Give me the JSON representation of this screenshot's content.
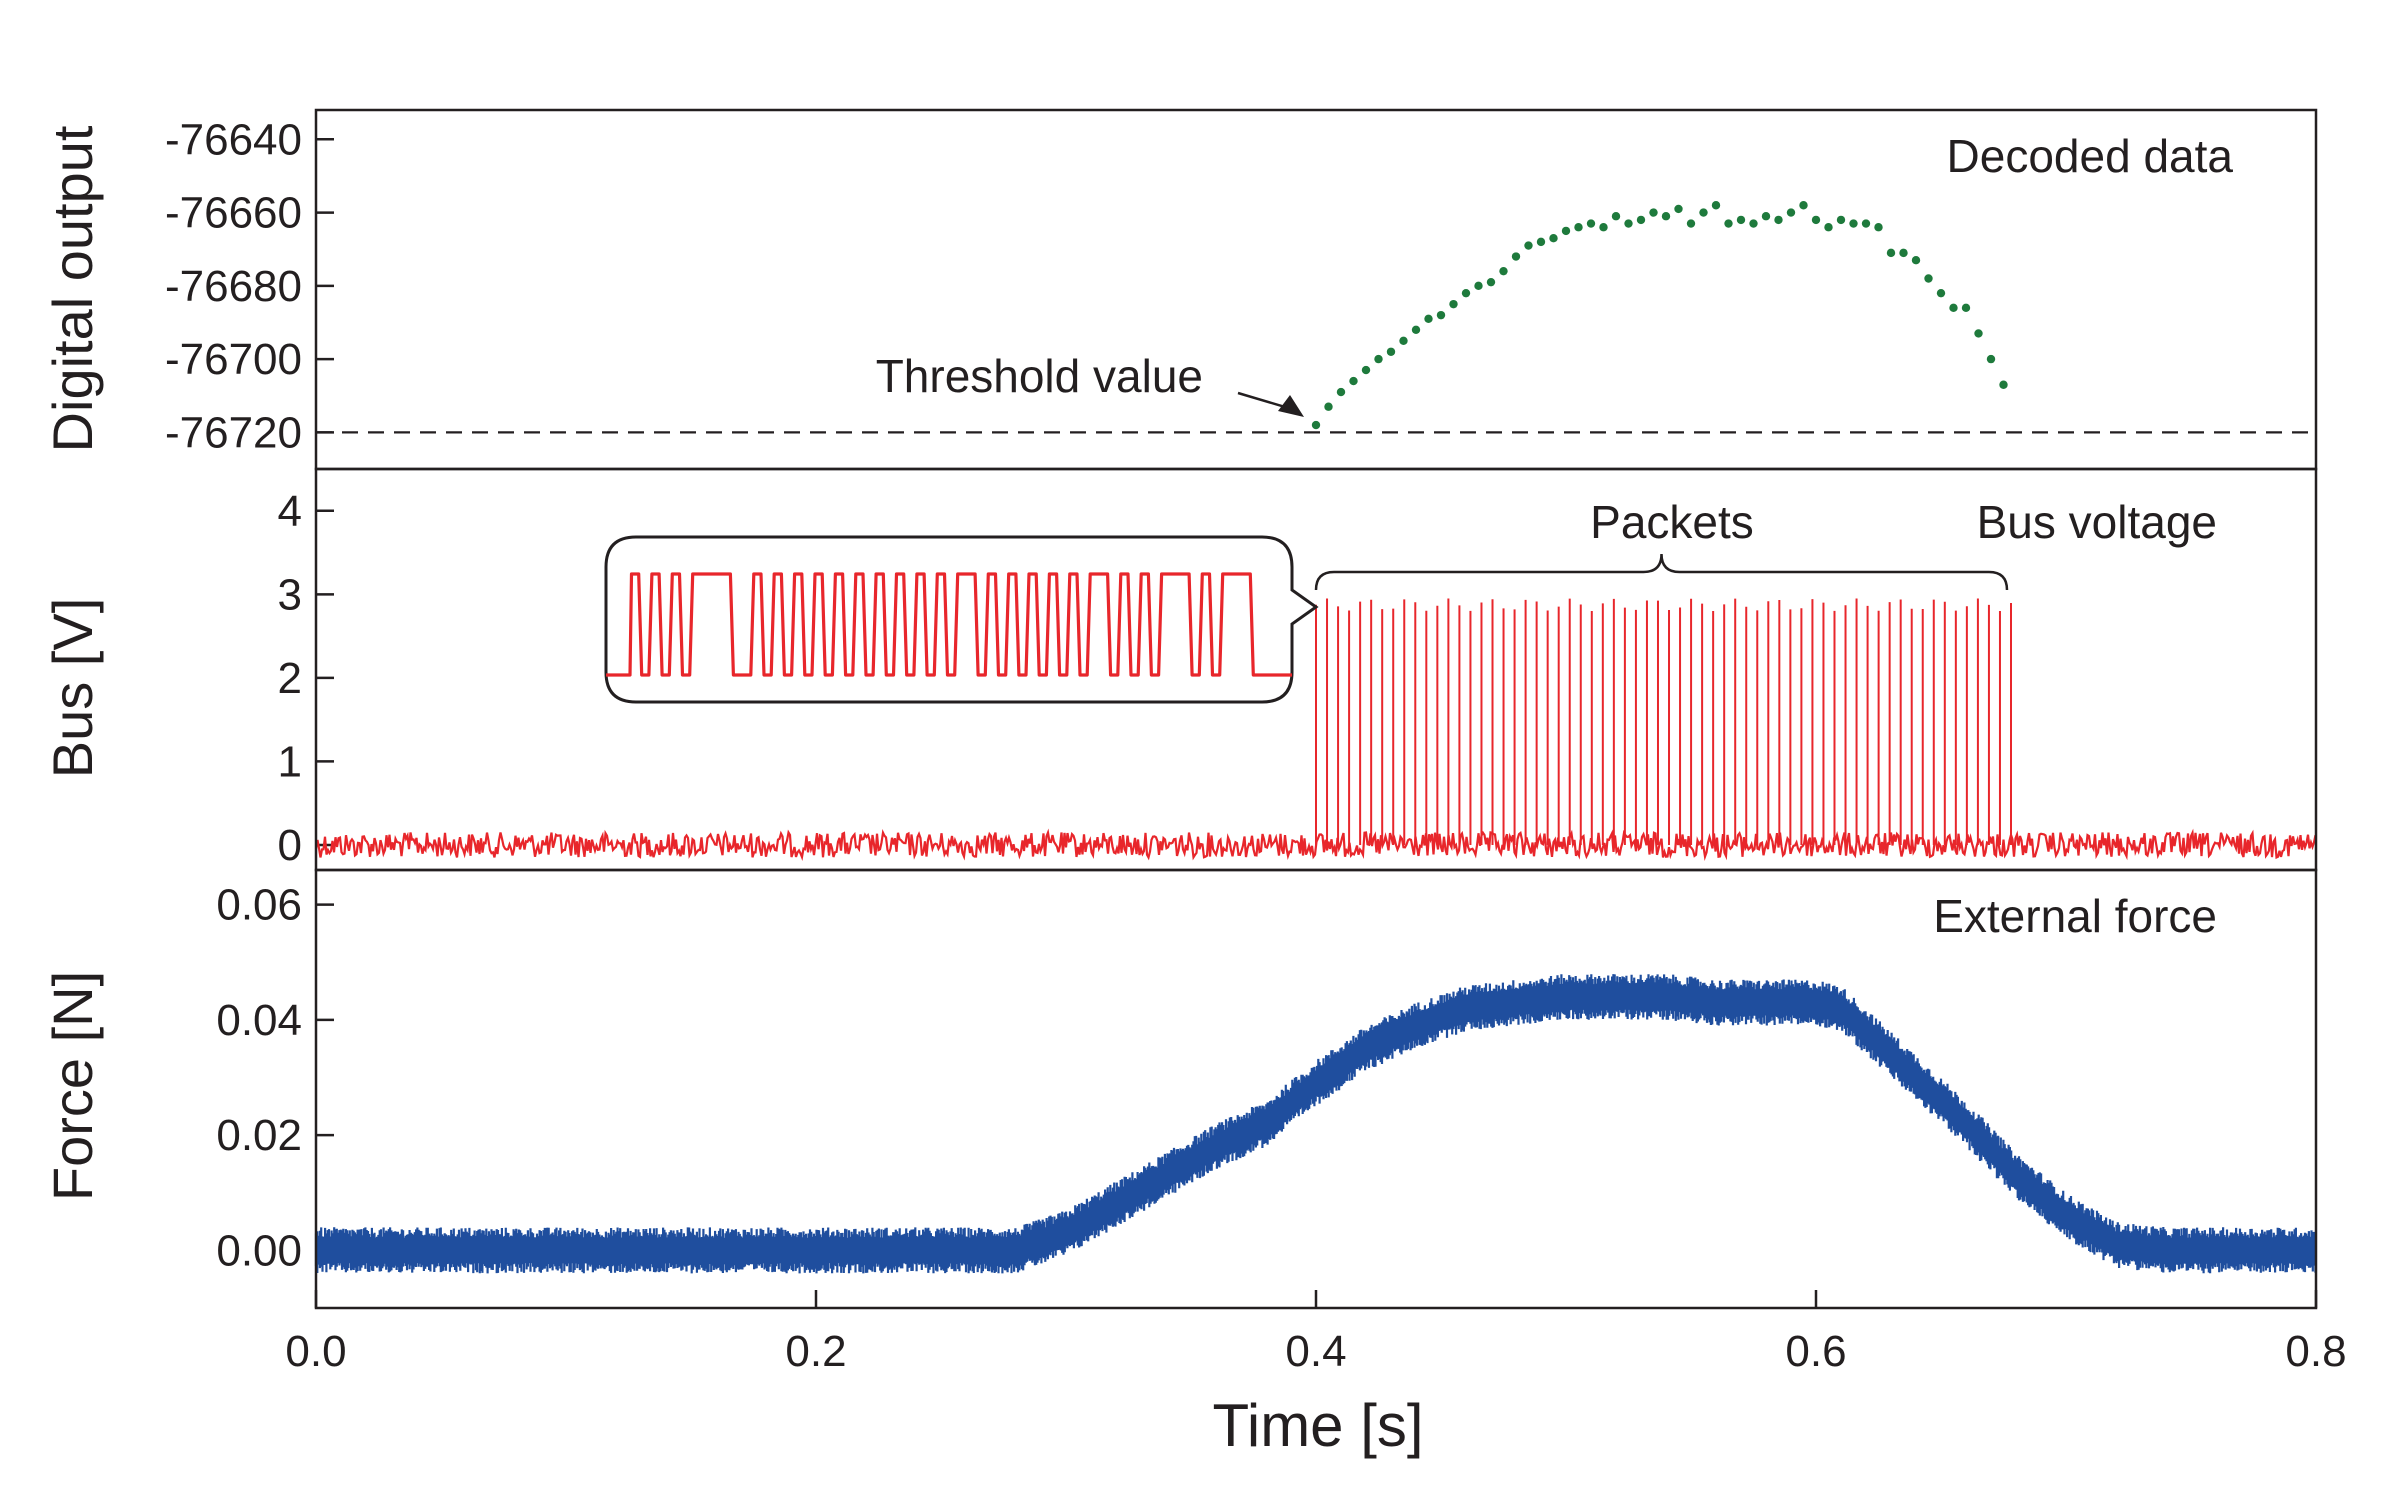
{
  "chart_data": [
    {
      "type": "scatter",
      "panel": "top",
      "ylabel": "Digital output",
      "annotations": [
        "Decoded data",
        "Threshold value"
      ],
      "ylim": [
        -76730,
        -76632
      ],
      "yticks": [
        -76640,
        -76660,
        -76680,
        -76700,
        -76720
      ],
      "ytick_labels": [
        "-76640",
        "-76660",
        "-76680",
        "-76700",
        "-76720"
      ],
      "threshold": -76720,
      "color": "#1e7a3c",
      "series": [
        {
          "name": "Decoded data",
          "x": [
            0.4,
            0.405,
            0.41,
            0.415,
            0.42,
            0.425,
            0.43,
            0.435,
            0.44,
            0.445,
            0.45,
            0.455,
            0.46,
            0.465,
            0.47,
            0.475,
            0.48,
            0.485,
            0.49,
            0.495,
            0.5,
            0.505,
            0.51,
            0.515,
            0.52,
            0.525,
            0.53,
            0.535,
            0.54,
            0.545,
            0.55,
            0.555,
            0.56,
            0.565,
            0.57,
            0.575,
            0.58,
            0.585,
            0.59,
            0.595,
            0.6,
            0.605,
            0.61,
            0.615,
            0.62,
            0.625,
            0.63,
            0.635,
            0.64,
            0.645,
            0.65,
            0.655,
            0.66,
            0.665,
            0.67,
            0.675
          ],
          "y": [
            -76718,
            -76713,
            -76709,
            -76706,
            -76703,
            -76700,
            -76698,
            -76695,
            -76692,
            -76689,
            -76688,
            -76685,
            -76682,
            -76680,
            -76679,
            -76676,
            -76672,
            -76669,
            -76668,
            -76667,
            -76665,
            -76664,
            -76663,
            -76664,
            -76661,
            -76663,
            -76662,
            -76660,
            -76661,
            -76659,
            -76663,
            -76660,
            -76658,
            -76663,
            -76662,
            -76663,
            -76661,
            -76662,
            -76660,
            -76658,
            -76662,
            -76664,
            -76662,
            -76663,
            -76663,
            -76664,
            -76671,
            -76671,
            -76673,
            -76678,
            -76682,
            -76686,
            -76686,
            -76693,
            -76700,
            -76707
          ]
        }
      ]
    },
    {
      "type": "line",
      "panel": "middle",
      "ylabel": "Bus [V]",
      "annotations": [
        "Bus voltage",
        "Packets"
      ],
      "ylim": [
        -0.3,
        4.5
      ],
      "yticks": [
        0,
        1,
        2,
        3,
        4
      ],
      "ytick_labels": [
        "0",
        "1",
        "2",
        "3",
        "4"
      ],
      "color": "#e8262b",
      "baseline_v": 0,
      "noise_v": 0.15,
      "packet_span_s": [
        0.4,
        0.678
      ],
      "packet_count": 64,
      "packet_high_v": [
        2.8,
        2.95
      ],
      "inset": {
        "low_v": 2.0,
        "high_v": 3.15,
        "bits": 40
      }
    },
    {
      "type": "line",
      "panel": "bottom",
      "ylabel": "Force [N]",
      "xlabel": "Time [s]",
      "annotations": [
        "External force"
      ],
      "xlim": [
        0.0,
        0.8
      ],
      "ylim": [
        -0.01,
        0.066
      ],
      "yticks": [
        0.0,
        0.02,
        0.04,
        0.06
      ],
      "ytick_labels": [
        "0.00",
        "0.02",
        "0.04",
        "0.06"
      ],
      "xticks": [
        0.0,
        0.2,
        0.4,
        0.6,
        0.8
      ],
      "xtick_labels": [
        "0.0",
        "0.2",
        "0.4",
        "0.6",
        "0.8"
      ],
      "color": "#1f4e9e",
      "band_half_width_n": 0.004,
      "series": [
        {
          "name": "External force",
          "t": [
            0.0,
            0.28,
            0.3,
            0.32,
            0.34,
            0.36,
            0.38,
            0.4,
            0.42,
            0.44,
            0.46,
            0.48,
            0.5,
            0.52,
            0.54,
            0.56,
            0.58,
            0.6,
            0.61,
            0.62,
            0.64,
            0.66,
            0.68,
            0.7,
            0.72,
            0.74,
            0.8
          ],
          "f": [
            0.0,
            0.0,
            0.003,
            0.008,
            0.013,
            0.018,
            0.022,
            0.029,
            0.035,
            0.039,
            0.042,
            0.043,
            0.044,
            0.044,
            0.044,
            0.043,
            0.043,
            0.043,
            0.042,
            0.038,
            0.03,
            0.022,
            0.013,
            0.006,
            0.001,
            0.0,
            0.0
          ]
        }
      ]
    }
  ]
}
